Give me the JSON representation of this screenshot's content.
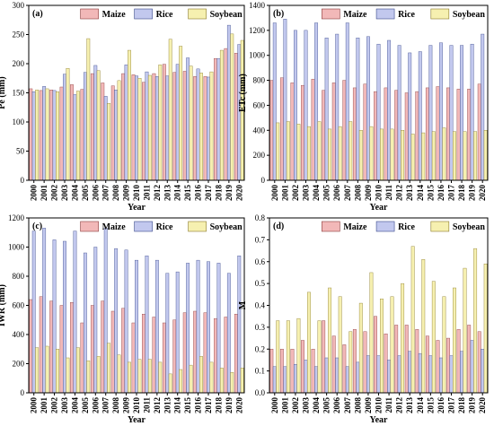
{
  "chart_data": [
    {
      "type": "bar",
      "panel_label": "(a)",
      "ylabel": "Pe (mm)",
      "xlabel": "Year",
      "ylim": [
        0,
        300
      ],
      "yticks": [
        0,
        50,
        100,
        150,
        200,
        250,
        300
      ],
      "categories": [
        "2000",
        "2001",
        "2002",
        "2003",
        "2004",
        "2005",
        "2006",
        "2007",
        "2008",
        "2009",
        "2010",
        "2011",
        "2012",
        "2013",
        "2014",
        "2015",
        "2016",
        "2017",
        "2018",
        "2019",
        "2020"
      ],
      "series": [
        {
          "name": "Maize",
          "values": [
            157,
            154,
            155,
            160,
            164,
            156,
            183,
            167,
            162,
            183,
            181,
            168,
            183,
            199,
            185,
            187,
            178,
            178,
            209,
            226,
            218
          ]
        },
        {
          "name": "Rice",
          "values": [
            152,
            161,
            154,
            182,
            147,
            185,
            197,
            144,
            155,
            198,
            179,
            186,
            178,
            179,
            199,
            210,
            191,
            177,
            209,
            266,
            233
          ]
        },
        {
          "name": "Soybean",
          "values": [
            155,
            157,
            152,
            192,
            153,
            243,
            188,
            132,
            171,
            223,
            175,
            180,
            198,
            242,
            230,
            196,
            184,
            186,
            223,
            251,
            240
          ]
        }
      ],
      "legend_position": "top"
    },
    {
      "type": "bar",
      "panel_label": "(b)",
      "ylabel": "ETc (mm)",
      "xlabel": "Year",
      "ylim": [
        0,
        1400
      ],
      "yticks": [
        0,
        200,
        400,
        600,
        800,
        1000,
        1200,
        1400
      ],
      "categories": [
        "2000",
        "2001",
        "2002",
        "2003",
        "2004",
        "2005",
        "2006",
        "2007",
        "2008",
        "2009",
        "2010",
        "2011",
        "2012",
        "2013",
        "2014",
        "2015",
        "2016",
        "2017",
        "2018",
        "2019",
        "2020"
      ],
      "series": [
        {
          "name": "Maize",
          "values": [
            800,
            820,
            780,
            760,
            810,
            720,
            780,
            800,
            740,
            770,
            710,
            740,
            720,
            700,
            710,
            740,
            750,
            740,
            730,
            730,
            770
          ]
        },
        {
          "name": "Rice",
          "values": [
            1260,
            1290,
            1200,
            1200,
            1260,
            1140,
            1170,
            1260,
            1140,
            1150,
            1090,
            1120,
            1080,
            1020,
            1030,
            1080,
            1100,
            1080,
            1080,
            1090,
            1170
          ]
        },
        {
          "name": "Soybean",
          "values": [
            460,
            470,
            450,
            430,
            470,
            410,
            430,
            470,
            400,
            430,
            410,
            410,
            400,
            370,
            380,
            390,
            420,
            390,
            390,
            390,
            400
          ]
        }
      ],
      "legend_position": "top"
    },
    {
      "type": "bar",
      "panel_label": "(c)",
      "ylabel": "IWR (mm)",
      "xlabel": "Year",
      "ylim": [
        0,
        1200
      ],
      "yticks": [
        0,
        200,
        400,
        600,
        800,
        1000,
        1200
      ],
      "categories": [
        "2000",
        "2001",
        "2002",
        "2003",
        "2004",
        "2005",
        "2006",
        "2007",
        "2008",
        "2009",
        "2010",
        "2011",
        "2012",
        "2013",
        "2014",
        "2015",
        "2016",
        "2017",
        "2018",
        "2019",
        "2020"
      ],
      "series": [
        {
          "name": "Maize",
          "values": [
            640,
            660,
            630,
            600,
            620,
            480,
            600,
            630,
            560,
            580,
            480,
            540,
            520,
            480,
            500,
            550,
            560,
            550,
            510,
            520,
            540
          ]
        },
        {
          "name": "Rice",
          "values": [
            1110,
            1130,
            1050,
            1040,
            1110,
            960,
            1000,
            1130,
            990,
            980,
            910,
            940,
            910,
            820,
            830,
            890,
            910,
            900,
            890,
            820,
            940
          ]
        },
        {
          "name": "Soybean",
          "values": [
            310,
            320,
            300,
            240,
            310,
            220,
            250,
            340,
            260,
            210,
            230,
            230,
            210,
            130,
            160,
            190,
            250,
            210,
            170,
            140,
            170
          ]
        }
      ],
      "legend_position": "top"
    },
    {
      "type": "bar",
      "panel_label": "(d)",
      "ylabel": "M",
      "xlabel": "Year",
      "ylim": [
        0,
        0.8
      ],
      "yticks": [
        0.0,
        0.1,
        0.2,
        0.3,
        0.4,
        0.5,
        0.6,
        0.7,
        0.8
      ],
      "categories": [
        "2000",
        "2001",
        "2002",
        "2003",
        "2004",
        "2005",
        "2006",
        "2007",
        "2008",
        "2009",
        "2010",
        "2011",
        "2012",
        "2013",
        "2014",
        "2015",
        "2016",
        "2017",
        "2018",
        "2019",
        "2020"
      ],
      "series": [
        {
          "name": "Maize",
          "values": [
            0.2,
            0.2,
            0.2,
            0.24,
            0.2,
            0.33,
            0.26,
            0.22,
            0.29,
            0.28,
            0.35,
            0.27,
            0.31,
            0.31,
            0.29,
            0.26,
            0.24,
            0.25,
            0.29,
            0.31,
            0.28
          ]
        },
        {
          "name": "Rice",
          "values": [
            0.12,
            0.12,
            0.13,
            0.15,
            0.12,
            0.16,
            0.16,
            0.12,
            0.14,
            0.17,
            0.17,
            0.15,
            0.17,
            0.19,
            0.18,
            0.17,
            0.16,
            0.17,
            0.19,
            0.24,
            0.2
          ]
        },
        {
          "name": "Soybean",
          "values": [
            0.33,
            0.33,
            0.34,
            0.46,
            0.33,
            0.48,
            0.44,
            0.28,
            0.41,
            0.55,
            0.43,
            0.44,
            0.5,
            0.67,
            0.61,
            0.51,
            0.44,
            0.48,
            0.57,
            0.66,
            0.59
          ]
        }
      ],
      "legend_position": "top"
    }
  ],
  "colors": {
    "Maize": "#f2b8b8",
    "Rice": "#c2c8ee",
    "Soybean": "#f6f0b0",
    "Maize_stroke": "#8a3a3a",
    "Rice_stroke": "#3a4a8a",
    "Soybean_stroke": "#8a7a2a"
  }
}
